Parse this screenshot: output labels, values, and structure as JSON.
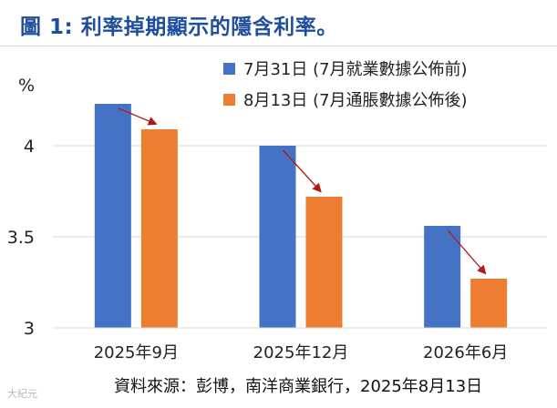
{
  "title": "圖 1: 利率掉期顯示的隱含利率。",
  "source_note": "資料來源：彭博，南洋商業銀行，2025年8月13日",
  "watermark": "大紀元",
  "colors": {
    "title": "#1f4e9c",
    "series1": "#4472c4",
    "series2": "#ed7d31",
    "arrow": "#b01a1a",
    "grid": "#d9d9d9"
  },
  "chart_data": {
    "type": "bar",
    "ylabel": "%",
    "ylim": [
      3,
      4.5
    ],
    "yticks": [
      3,
      3.5,
      4
    ],
    "ytick_labels": [
      "3",
      "3.5",
      "4"
    ],
    "grid": true,
    "legend_position": "top-right",
    "categories": [
      "2025年9月",
      "2025年12月",
      "2026年6月"
    ],
    "series": [
      {
        "name": "7月31日 (7月就業數據公佈前)",
        "values": [
          4.23,
          4.0,
          3.56
        ]
      },
      {
        "name": "8月13日 (7月通脹數據公佈後)",
        "values": [
          4.09,
          3.72,
          3.27
        ]
      }
    ]
  }
}
